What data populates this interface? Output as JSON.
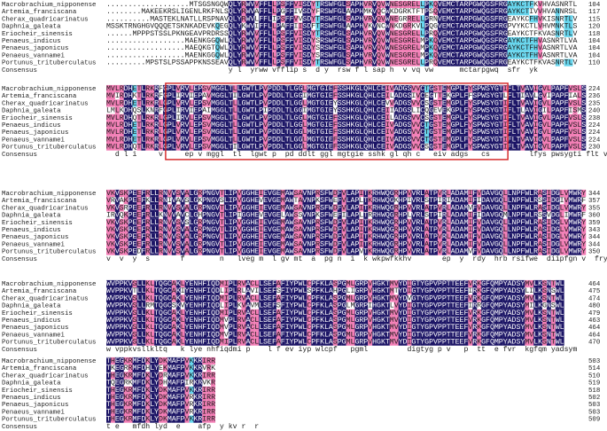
{
  "blocks": [
    {
      "rows": [
        {
          "name": "Macrobrachium_nipponense",
          "sequence": "...................MTSGSNGQWQLYRWVVFFLLPSFFVISDYTRSWFGLSAPHVRVQVWNESGRELLPKQVEMCTARPGWQGSFRGAYKCTFKVHVASNRTL",
          "end": 104
        },
        {
          "name": "Artemia_franciscana",
          "sequence": "........MAKEEKRSLIGENLRKFNLSQLYRWVAFFLLPGFFIVSDYFRSWFGLAAPHMKVQCWKDGRKTFTPSQVEMCTARPGWQGSFRGAYKCTIVVHVANNRSL",
          "end": 117
        },
        {
          "name": "Cherax_quadricarinatus",
          "sequence": "..........MASTEKLNATLLRSPNAVQLYRWVLFFLIPSFFVVSDYTRSWFGLSAPHVRVQVWNEGRRELLPRNVEMCTARPGWQGSFRGEAYKCFHVKISNRTLV",
          "end": 115
        },
        {
          "name": "Daphnia_galeata",
          "sequence": "MSSKTRNGHGVQQQETSKNKADEVKQEGQLYKWVIFFLLPAFFIISDFTRSWFGLAAPHVKVNCWNKDGRKVLPQGVEMCTARPGWQGSFRGPVYKCTLVHVMNKTLS",
          "end": 120
        },
        {
          "name": "Eriocheir_sinensis",
          "sequence": "......MPPPSTSSLPKNGEAVPRDRSSQLYRWVVFFLLPSFFVISDYTRSWFGLSAPHVRVQVWNESGRELLPRQVEMCTARPGWQGSFRGEAYKCTFKVASNRTLV",
          "end": 118
        },
        {
          "name": "Penaeus_indicus",
          "sequence": "..................MAENKGGQWLQLYRWVVFFLLPSFFVISDYSRSWFGLSAPHVRVQVWNESGRELMPKQVEMCTARPGWQGSFRGAYKCTFHVASNRTLVA",
          "end": 104
        },
        {
          "name": "Penaeus_japonicus",
          "sequence": "..................MAEQKGTQWLQLYRWVVFFLLPSFFVISDYSRSWFGLSAPHVRVQVWNESGRELMPKQVEMCTARPGWQGSFRGAYKCTFHVASNRTLVA",
          "end": 104
        },
        {
          "name": "Penaeus_vannamei",
          "sequence": "..................MAENKGGQWLQLYRWVVFFLLPSFFVISDYSRSWFGLSAPHVRVQVWNESGRELMPKQVEMCTARPGWQGSFRGAYKCTFHVASNRTLVA",
          "end": 104
        },
        {
          "name": "Portunus_trituberculatus",
          "sequence": ".........MPSTSLPSSAPPKNSSEAVQLYRWVVFFLLPSFFVISDYTRSWFGLSAPHVRVQVWNESGRELLPRQVEMCTARPGWQGSFRGEAYKCTFKVASNRTLV",
          "end": 110
        }
      ],
      "consensus_label": "Consensus",
      "consensus": "                            y l  yrww vfflip s  d y  rsw f l sap h  v vq vw      mctarpgwq  sfr  yk            "
    },
    {
      "rows": [
        {
          "name": "Macrobrachium_nipponense",
          "sequence": "MVLRDHETLRKRFGPLVRVLEPSVMGGLTLLGWTLPVPDDLTLGGLMGTGIEFSSHKGLQHLCEIVADGSVVCTGSTEMGPLFYSPWSYGTIFLTVAVIGVLPAPFVSLS",
          "end": 224
        },
        {
          "name": "Artemia_franciscana",
          "sequence": "MVIRDHKTLRKRFGPLIRVIEPAVMGGLTILGWTLPVPDDLTLGGIMGTGIEFSSHKGLQHLCEILADGSIVCEGTTEKGPLFFSPWSYGTLFLTIAVLGVIPAPFIALS",
          "end": 236
        },
        {
          "name": "Cherax_quadricarinatus",
          "sequence": "MVLRDHETLRKRLGPLVRVLEPSVMGGLTLLGWTLPVPDDLTLGGLMGTGIEYSSHKGLQHLCEVVADGSVVCSGSTEMGPLFYSPWSYGTIFLTVAVIGVLPAPFVSLS",
          "end": 235
        },
        {
          "name": "Daphnia_galeata",
          "sequence": "LMLKDHQSLKNRFGPLIRVIEPAIMGGLTLLGWTLPIPDDLTLGGIMGTGIEYSSHKGLQHLCEIIADGSLICQGEVEKGPLFYSPWSYGTIFLTLAVIGILPAPFISMS",
          "end": 240
        },
        {
          "name": "Eriocheir_sinensis",
          "sequence": "MVLRDHQTLRKRLGPLIRVLEPSVMGGLTLLGWTLPVPDDLTLGGLMGTGIEFSSHKGLQHLCEILADGSVVCSGSTEMGPLFYSPWSYGTIFLTVAVIGVLPAPFVSLS",
          "end": 238
        },
        {
          "name": "Penaeus_indicus",
          "sequence": "MVLRDHETLRKRLGPLVRVLEPSVMGGLTLLGWTLPVPDDLTLGGLMGTGIEFSSHKGLQHLCEIVADGSVVCTGSTEMGPLFYSPWSYGTIFLTVAVIGVLPAPFVSLS",
          "end": 224
        },
        {
          "name": "Penaeus_japonicus",
          "sequence": "MVLRDHETLRKRLGPLVRVLEPSVMGGLTLLGWTLPVPDDLTLGGLMGTGIEFSSHKGLQHLCEIVADGSVVCTGSTEMGPLFYSPWSYGTIFLTVAVIGVLPAPFVSLS",
          "end": 224
        },
        {
          "name": "Penaeus_vannamei",
          "sequence": "MVLRDHETLRKRLGPLVRVLEPSVMGGLTLLGWTLPVPDDLTLGGLMGTGIEFSSHKGLQHLCEIVADGSVVCTGSTEMGPLFYSPWSYGTIFLTVAVIGVLPAPFVSLS",
          "end": 224
        },
        {
          "name": "Portunus_trituberculatus",
          "sequence": "MVLRDHQTLRKRLGPLVRVLEPSVMGGLTILGWTLPVPDDLTLGGLMGTGIEFSSHKGLQHLCEIVADGSVVCSGSTEMGPLFYSPWSYGTIFLTVAVIGVLPAPFVSLS",
          "end": 230
        }
      ],
      "consensus_label": "Consensus",
      "consensus": "  d l i     v     ep v mggl  tl  lgwt p  pd ddlt ggl mgtgie sshk gl qh c   eiv adgs   cs         lfys pwsygti flt v i i pa f"
    },
    {
      "rows": [
        {
          "name": "Macrobrachium_nipponense",
          "sequence": "VKVSKPEEFRLLRNVVSVALGRPNGVTLIPVGGHEIEVGEMAWSAVNPRSFWDFVLAPITKRHWQGRHPVVRLATPVRLADAMIFVDAVGQLLNPFWLRASIDGLVMWRY",
          "end": 344
        },
        {
          "name": "Artemia_franciscana",
          "sequence": "VRVAKPEEFKLLRNIVAVSLGKPNGVSLIPVGGHEVEVGEMAWTAVNPKSFWEFVLAPLTKRHWQGKHPIVRLSTPIRIADAMIFIDAVGQLLNPFWLRSSIDGIVMWRF",
          "end": 357
        },
        {
          "name": "Cherax_quadricarinatus",
          "sequence": "VKVSRPEEFRLLRNVVSVALGRPNGVTLIPVGGHEIEVGEMAWSAVNPRSFWDFVLAPITKRHWQGRHPVVRLATPVRLADAMVFVDAVGQLLNPFWLRASIDGLVMWRY",
          "end": 355
        },
        {
          "name": "Daphnia_galeata",
          "sequence": "IRVQKPEEFRLLKNVVAVCLGHPNGVTLIPIGGHEVEVGELAWSSVNPKSFWEFILAPLTRRHWQGRHPLVRLSTPIRLADAMIFIDAVGQMLNPFWLRSSVDGLIMWRF",
          "end": 360
        },
        {
          "name": "Eriocheir_sinensis",
          "sequence": "VKVSKPEEFRLLRNVVSVSLGRPNGVTLIPVGGHEIEVGEMAWSAVNPRSFWDFVLAPITKRHWQGRHPVVRLATPVRLADAMIFVDAVGQLLNPFWLRASIDGLVMWRY",
          "end": 359
        },
        {
          "name": "Penaeus_indicus",
          "sequence": "VKVSKPEEFRLLRNVVSVALGRPNGVTLIPVGGHEIEVGEMAWSAVNPRSFWDFVLAPITKRHWQGRHPVVRLATPVRLADAMIFVDAVGQLLNPFWLRASIDGLVMWRY",
          "end": 343
        },
        {
          "name": "Penaeus_japonicus",
          "sequence": "VKVSKPEEFRLLRNVVSVALGRPNGVTLIPVGGHEIEVGEMAWSAVNPRSFWDFVLAPITKRHWQGRHPVVRLATPVRLADAMIFVDAVGQLLNPFWLRASIDGLVMWRY",
          "end": 344
        },
        {
          "name": "Penaeus_vannamei",
          "sequence": "VKVSKPEEFRLLRNVVSVALGRPNGVTLIPVGGHEIEVGEMAWSAVNPRSFWDFVLAPITKRHWQGRHPVVRLATPVRLADAMIFVDAVGQLLNPFWLRASIDGLVMWRY",
          "end": 344
        },
        {
          "name": "Portunus_trituberculatus",
          "sequence": "VKVSKPEDFRLLRNVVSVALGRPNGVTLIPVGGHEIEVGEMAWSAVNPRSFWDFVLAPVTKRHWQGRHPVVRLATPVRLADAMVFVDAVGQLLNPFWLRASIDGLVMWRY",
          "end": 350
        }
      ],
      "consensus_label": "Consensus",
      "consensus": "v  v  y  s       f        n   lveg m  l gv mt  a  pg n  i  k wkpwfkkhv       ep  y  rdy  hrb rsifwe  diipfgn v  fryl g"
    },
    {
      "rows": [
        {
          "name": "Macrobrachium_nipponense",
          "sequence": "WVPPKVSLLKLTQGCAKLYENHFIQDMIPLRVACLLSEFAFIYPWLCPFKLASPGMLGRPVHGKTMVYDIGTYGPVPPTTEEFVRKGFQMPYADSYMVLKSNTWL",
          "end": 464
        },
        {
          "name": "Artemia_franciscana",
          "sequence": "WVPPKVTLLKLTQGCAKIYENHFIQDLIPLRLAVILSEFSFIYPWLSPFKLAHPGLIGRPVHGKTMTYDIGTYGPVPPTTEEFIRKGFQMPYADSYLILKSNSWL",
          "end": 475
        },
        {
          "name": "Cherax_quadricarinatus",
          "sequence": "WVPPKVSLLKLTQGCAKLYENHFIQDMIPLRVACLLSEFAFIYPWLCPFKLASPGMLGRPVHGKTMVYDVGTYGPVPPTTEEFVRKGFQMPYADSYMVLKSNTWL",
          "end": 474
        },
        {
          "name": "Daphnia_galeata",
          "sequence": "WVPPKVSLLRMTQGCSKVYENHFIQDLIPLKVAVMLSEFSFIYPWLCPFKLASPGLMGRPIHGKTLVYDIGTYGPVPPTTEEFIRRGFQMPYADSYMILKGNSWL",
          "end": 480
        },
        {
          "name": "Eriocheir_sinensis",
          "sequence": "WVPPKVSLLKLTQGCAKLYENHFIQDMIPLRVACLLSEFAFIYPWLCPFKLASPGMLGRPVHGKTMVYDIGTYGPVPPTTEEFVRKGFQMPYADSYMVLKSNTWL",
          "end": 479
        },
        {
          "name": "Penaeus_indicus",
          "sequence": "WVPPKVSLLKLTQGCAKLYENHFIQDMVPLRVACLLSEFAFIYPWLCPFKLASPGMLGRPVHGKTMVYDIGTYGPVPPTTEEFVRKGFQMPYADSYMVLKSNTWL",
          "end": 463
        },
        {
          "name": "Penaeus_japonicus",
          "sequence": "WVPPKVSLLKLTQGCAKLYENHFIQDMVPLRVACLLSEFAFIYPWLCPFKLASPGMLGRPVHGKTMVYDIGTYGPVPPTTEEFVRKGFQMPYADSYMVLKSNTWL",
          "end": 464
        },
        {
          "name": "Penaeus_vannamei",
          "sequence": "WVPPKVSLLKLTQGCAKLYENHFIQDMVPLRVACLLSEFAFIYPWLCPFKLASPGMLGRPVHGKTMVYDIGTYGPVPPTTEEFVRKGFQMPYADSYMVLKSNTWL",
          "end": 464
        },
        {
          "name": "Portunus_trituberculatus",
          "sequence": "WVPPKVSLLKLTQGCAKLYENHFIQDMIPLRVACLLSEFAFIYPWLCPFKLASPGMLGRPVHGKTMVYDIGTYGPVPPTTEEFVRKGFQMPYADSYMVLKSNTWL",
          "end": 470
        }
      ],
      "consensus_label": "Consensus",
      "consensus": "w vppkvsllkltq   k lye nhfiqdmi p    l f ev iyp wlcpf   pgml         digtyg p v   p  tt  e fvr  kgfqm yadsym"
    },
    {
      "rows": [
        {
          "name": "Macrobrachium_nipponense",
          "sequence": "THEGKRMFDKLYDKMAFPVKKRIRR",
          "end": 503
        },
        {
          "name": "Artemia_franciscana",
          "sequence": "TKEGRRMFDHLYEKMAFPVKKRVRK",
          "end": 514
        },
        {
          "name": "Cherax_quadricarinatus",
          "sequence": "THEGKRMFDKLYDRMAFPVKKRIRR",
          "end": 510
        },
        {
          "name": "Daphnia_galeata",
          "sequence": "TQEGRKMFDKLYDHMAFPIRKRVKR",
          "end": 519
        },
        {
          "name": "Eriocheir_sinensis",
          "sequence": "THEGKRMFDKLYDKMAFPVKKRIRR",
          "end": 518
        },
        {
          "name": "Penaeus_indicus",
          "sequence": "THEGKRMFDKLYDKMAFPVRKRIRR",
          "end": 502
        },
        {
          "name": "Penaeus_japonicus",
          "sequence": "THEGKRMFDKLYDKMAFPVRKRIRR",
          "end": 503
        },
        {
          "name": "Penaeus_vannamei",
          "sequence": "THEGKRMFDKLYDKMAFPVRKRIRR",
          "end": 503
        },
        {
          "name": "Portunus_trituberculatus",
          "sequence": "THEGKRMFDKLYDKMAFPVKKRIRR",
          "end": 509
        }
      ],
      "consensus_label": "Consensus",
      "consensus": "t e   mfdh lyd  e    afp  y kv r  r"
    }
  ]
}
